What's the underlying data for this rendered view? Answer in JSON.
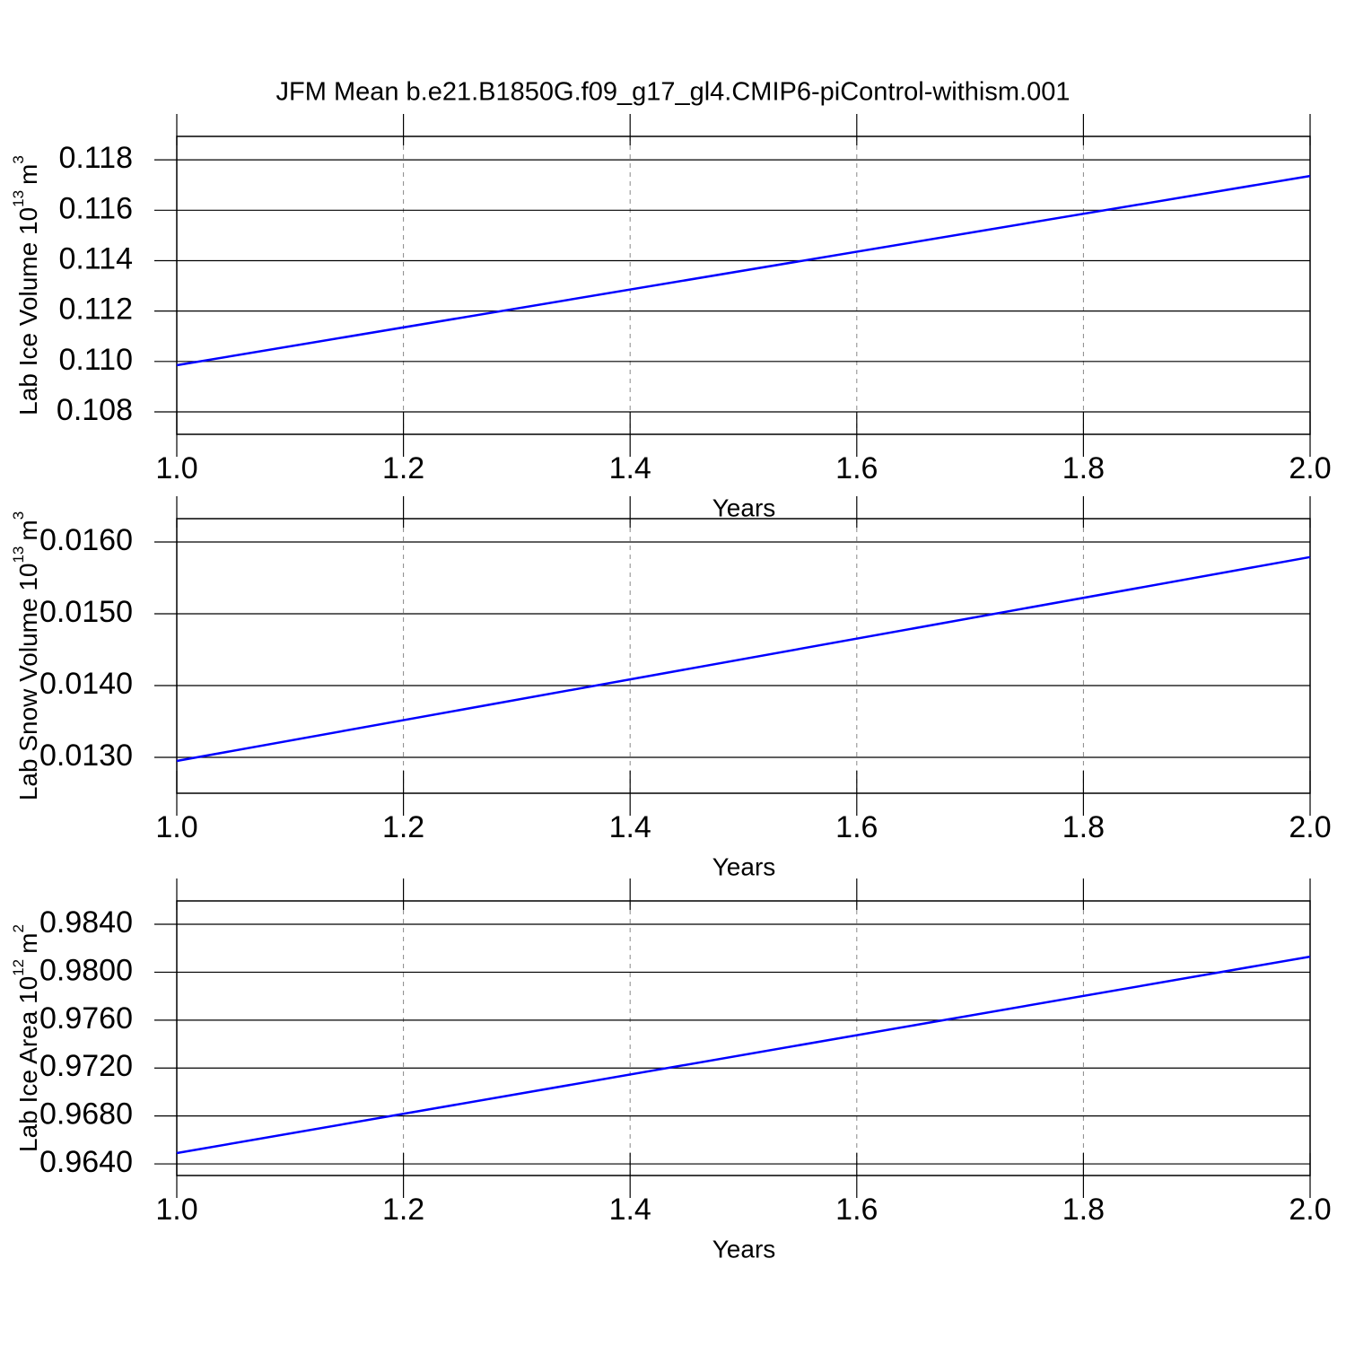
{
  "title": "JFM Mean b.e21.B1850G.f09_g17_gl4.CMIP6-piControl-withism.001",
  "chart_data": [
    {
      "type": "line",
      "ylabel": [
        "Lab Ice Volume 10",
        "13",
        "m",
        "3"
      ],
      "xlabel": "Years",
      "x": [
        1.0,
        2.0
      ],
      "series": [
        {
          "color": "#0000ff",
          "values": [
            0.10985,
            0.11736
          ]
        }
      ],
      "xlim": [
        1.0,
        2.0
      ],
      "xticks": [
        {
          "value": 1.0,
          "label": "1.0"
        },
        1.2,
        1.4,
        1.6,
        1.8,
        {
          "value": 2.0,
          "label": "2.0"
        }
      ],
      "ylim": [
        0.10711,
        0.11893
      ],
      "yticks": [
        0.108,
        {
          "value": 0.11,
          "label": "0.110"
        },
        0.112,
        0.114,
        0.116,
        0.118
      ],
      "grid": "x"
    },
    {
      "type": "line",
      "ylabel": [
        "Lab Snow Volume 10",
        "13",
        "m",
        "3"
      ],
      "xlabel": "Years",
      "x": [
        1.0,
        2.0
      ],
      "series": [
        {
          "color": "#0000ff",
          "values": [
            0.01295,
            0.01579
          ]
        }
      ],
      "xlim": [
        1.0,
        2.0
      ],
      "xticks": [
        {
          "value": 1.0,
          "label": "1.0"
        },
        1.2,
        1.4,
        1.6,
        1.8,
        {
          "value": 2.0,
          "label": "2.0"
        }
      ],
      "ylim": [
        0.0125,
        0.016325
      ],
      "yticks": [
        {
          "value": 0.013,
          "label": "0.0130"
        },
        {
          "value": 0.014,
          "label": "0.0140"
        },
        {
          "value": 0.015,
          "label": "0.0150"
        },
        {
          "value": 0.016,
          "label": "0.0160"
        }
      ],
      "grid": "x"
    },
    {
      "type": "line",
      "ylabel": [
        "Lab Ice Area 10",
        "12",
        "m",
        "2"
      ],
      "xlabel": "Years",
      "x": [
        1.0,
        2.0
      ],
      "series": [
        {
          "color": "#0000ff",
          "values": [
            0.9649,
            0.9813
          ]
        }
      ],
      "xlim": [
        1.0,
        2.0
      ],
      "xticks": [
        {
          "value": 1.0,
          "label": "1.0"
        },
        1.2,
        1.4,
        1.6,
        1.8,
        {
          "value": 2.0,
          "label": "2.0"
        }
      ],
      "ylim": [
        0.96303,
        0.98595
      ],
      "yticks": [
        {
          "value": 0.964,
          "label": "0.9640"
        },
        {
          "value": 0.968,
          "label": "0.9680"
        },
        {
          "value": 0.972,
          "label": "0.9720"
        },
        {
          "value": 0.976,
          "label": "0.9760"
        },
        {
          "value": 0.98,
          "label": "0.9800"
        },
        {
          "value": 0.984,
          "label": "0.9840"
        }
      ],
      "grid": "x"
    }
  ]
}
